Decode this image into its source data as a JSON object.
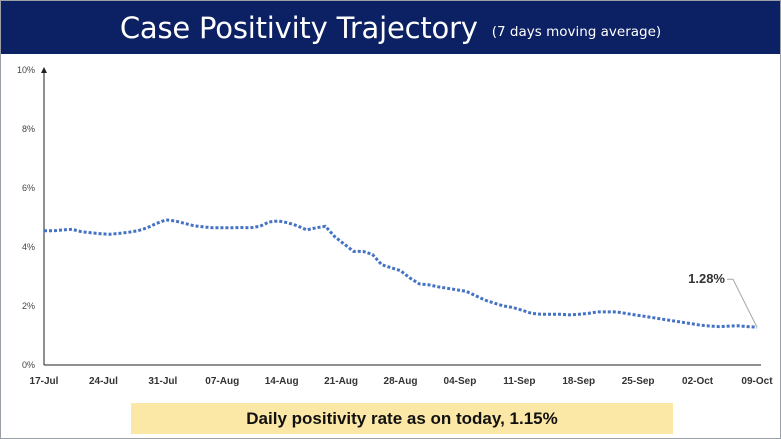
{
  "header": {
    "title": "Case Positivity Trajectory",
    "subtitle": "(7 days moving average)"
  },
  "banner": {
    "text": "Daily positivity rate as on today, 1.15%"
  },
  "colors": {
    "header_bg": "#0c2164",
    "line": "#4472c4",
    "banner_bg": "#fbe8a6"
  },
  "chart_data": {
    "type": "line",
    "title": "Case Positivity Trajectory",
    "subtitle": "(7 days moving average)",
    "ylim": [
      0,
      10
    ],
    "yticks": [
      0,
      2,
      4,
      6,
      8,
      10
    ],
    "ytick_labels": [
      "0%",
      "2%",
      "4%",
      "6%",
      "8%",
      "10%"
    ],
    "x_start_date": "17-Jul",
    "x_tick_labels": [
      "17-Jul",
      "24-Jul",
      "31-Jul",
      "07-Aug",
      "14-Aug",
      "21-Aug",
      "28-Aug",
      "04-Sep",
      "11-Sep",
      "18-Sep",
      "25-Sep",
      "02-Oct",
      "09-Oct"
    ],
    "line_style": "dotted",
    "grid": false,
    "legend": "none",
    "series": [
      {
        "values": [
          4.55,
          4.55,
          4.58,
          4.6,
          4.52,
          4.48,
          4.45,
          4.43,
          4.46,
          4.5,
          4.55,
          4.65,
          4.8,
          4.92,
          4.88,
          4.8,
          4.72,
          4.68,
          4.65,
          4.65,
          4.65,
          4.66,
          4.65,
          4.7,
          4.85,
          4.88,
          4.82,
          4.72,
          4.58,
          4.65,
          4.7,
          4.35,
          4.1,
          3.85,
          3.85,
          3.75,
          3.4,
          3.3,
          3.2,
          2.95,
          2.75,
          2.72,
          2.65,
          2.6,
          2.55,
          2.5,
          2.35,
          2.2,
          2.1,
          2.0,
          1.95,
          1.85,
          1.75,
          1.72,
          1.72,
          1.72,
          1.7,
          1.72,
          1.75,
          1.8,
          1.8,
          1.8,
          1.75,
          1.7,
          1.65,
          1.6,
          1.55,
          1.5,
          1.45,
          1.4,
          1.35,
          1.32,
          1.3,
          1.32,
          1.33,
          1.3,
          1.28
        ]
      }
    ],
    "annotations": [
      {
        "text": "1.28%",
        "x": "09-Oct",
        "y": 1.28
      }
    ]
  }
}
